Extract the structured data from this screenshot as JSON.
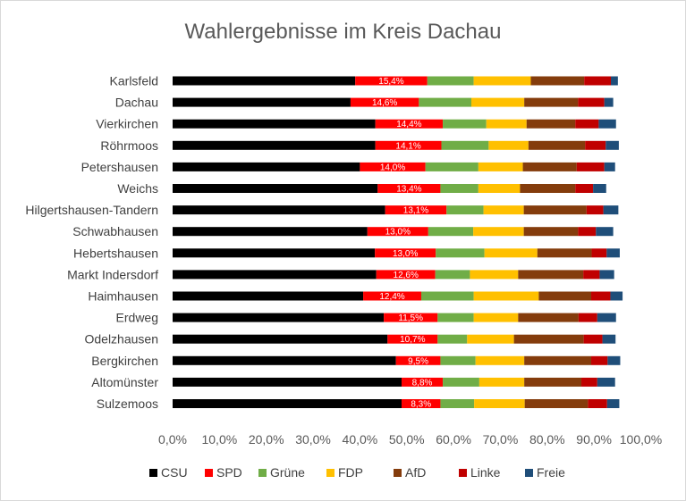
{
  "chart_data": {
    "type": "bar",
    "orientation": "horizontal",
    "stacked": true,
    "title": "Wahlergebnisse im Kreis Dachau",
    "categories": [
      "Karlsfeld",
      "Dachau",
      "Vierkirchen",
      "Röhrmoos",
      "Petershausen",
      "Weichs",
      "Hilgertshausen-Tandern",
      "Schwabhausen",
      "Hebertshausen",
      "Markt Indersdorf",
      "Haimhausen",
      "Erdweg",
      "Odelzhausen",
      "Bergkirchen",
      "Altomünster",
      "Sulzemoos"
    ],
    "series": [
      {
        "name": "CSU",
        "color": "#000000",
        "values": [
          39.0,
          38.0,
          43.3,
          43.3,
          40.0,
          43.8,
          45.4,
          41.6,
          43.2,
          43.5,
          40.7,
          45.1,
          45.9,
          47.7,
          48.9,
          48.9
        ]
      },
      {
        "name": "SPD",
        "color": "#ff0000",
        "values": [
          15.4,
          14.6,
          14.4,
          14.1,
          14.0,
          13.4,
          13.1,
          13.0,
          13.0,
          12.6,
          12.4,
          11.5,
          10.7,
          9.5,
          8.8,
          8.3
        ]
      },
      {
        "name": "Grüne",
        "color": "#70ad47",
        "values": [
          9.9,
          11.2,
          9.3,
          10.1,
          11.3,
          8.1,
          7.9,
          9.6,
          10.4,
          7.4,
          11.2,
          7.7,
          6.3,
          7.5,
          7.8,
          7.2
        ]
      },
      {
        "name": "FDP",
        "color": "#ffc000",
        "values": [
          12.2,
          11.3,
          8.6,
          8.5,
          9.5,
          8.9,
          8.6,
          10.8,
          11.3,
          10.3,
          13.9,
          9.5,
          10.0,
          10.4,
          9.6,
          10.8
        ]
      },
      {
        "name": "AfD",
        "color": "#843c0c",
        "values": [
          11.4,
          11.5,
          10.4,
          12.1,
          11.5,
          11.8,
          13.4,
          11.6,
          11.6,
          13.9,
          11.2,
          12.9,
          14.9,
          14.3,
          12.2,
          13.5
        ]
      },
      {
        "name": "Linke",
        "color": "#c00000",
        "values": [
          5.7,
          5.6,
          5.0,
          4.4,
          5.9,
          3.8,
          3.6,
          3.8,
          3.2,
          3.5,
          4.1,
          4.0,
          4.0,
          3.5,
          3.4,
          4.1
        ]
      },
      {
        "name": "Freie",
        "color": "#1f4e79",
        "values": [
          1.5,
          1.9,
          3.7,
          2.8,
          2.3,
          2.8,
          3.2,
          3.7,
          2.8,
          3.1,
          2.6,
          4.0,
          2.8,
          2.7,
          3.8,
          2.6
        ]
      }
    ],
    "data_labels": [
      "15,4%",
      "14,6%",
      "14,4%",
      "14,1%",
      "14,0%",
      "13,4%",
      "13,1%",
      "13,0%",
      "13,0%",
      "12,6%",
      "12,4%",
      "11,5%",
      "10,7%",
      "9,5%",
      "8,8%",
      "8,3%"
    ],
    "x_ticks": [
      "0,0%",
      "10,0%",
      "20,0%",
      "30,0%",
      "40,0%",
      "50,0%",
      "60,0%",
      "70,0%",
      "80,0%",
      "90,0%",
      "100,0%"
    ],
    "xlim": [
      0,
      100
    ],
    "grid": false,
    "legend_position": "bottom"
  }
}
